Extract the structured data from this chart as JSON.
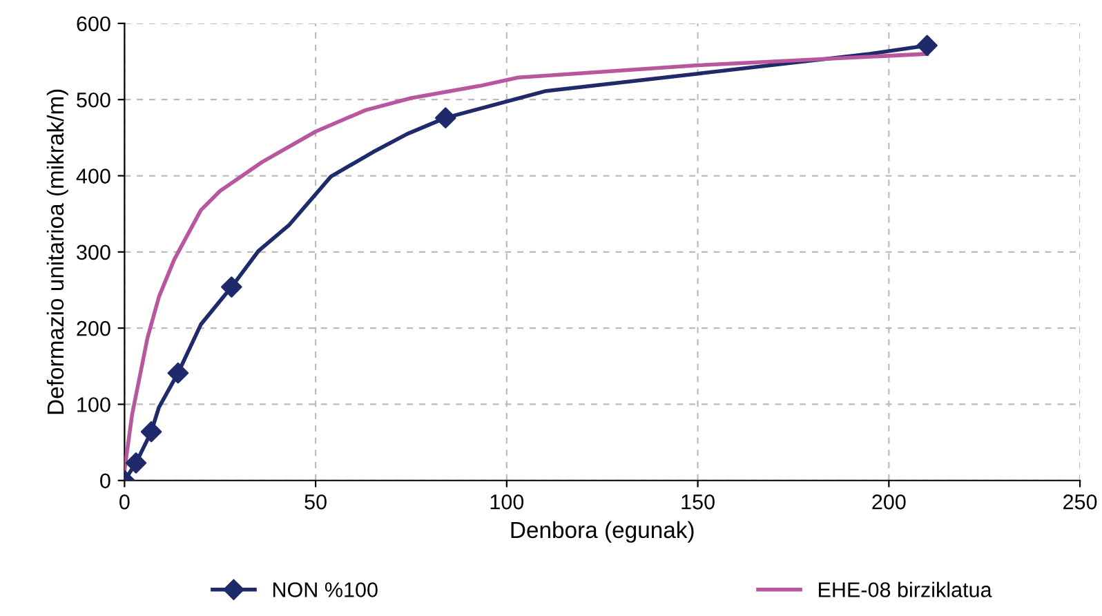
{
  "chart_data": {
    "type": "line",
    "xlabel": "Denbora (egunak)",
    "ylabel": "Deformazio unitarioa (mikrak/m)",
    "xlim": [
      0,
      250
    ],
    "ylim": [
      0,
      600
    ],
    "xticks": [
      0,
      50,
      100,
      150,
      200,
      250
    ],
    "yticks": [
      0,
      100,
      200,
      300,
      400,
      500,
      600
    ],
    "grid": true,
    "legend": "bottom",
    "series": [
      {
        "name": "NON %100",
        "color": "#1f2a6b",
        "marker": "none",
        "x": [
          0,
          3,
          7,
          9,
          14,
          20,
          28,
          35,
          43,
          54,
          65,
          74,
          84,
          110,
          150,
          195,
          210
        ],
        "values": [
          0,
          23,
          64,
          96,
          141,
          205,
          254,
          301,
          335,
          399,
          431,
          455,
          476,
          511,
          534,
          560,
          571
        ]
      },
      {
        "type": "scatter",
        "color": "#1f2a6b",
        "marker": "diamond",
        "x": [
          0,
          3,
          7,
          14,
          28,
          84,
          210
        ],
        "values": [
          0,
          23,
          64,
          141,
          254,
          476,
          571
        ]
      },
      {
        "name": "EHE-08 birziklatua",
        "color": "#b8579e",
        "marker": "none",
        "x": [
          0,
          2,
          6,
          9,
          13,
          20,
          25,
          36,
          50,
          63,
          75,
          93,
          103,
          150,
          210
        ],
        "values": [
          14,
          87,
          187,
          241,
          290,
          355,
          380,
          418,
          458,
          486,
          502,
          518,
          529,
          545,
          560
        ]
      }
    ]
  }
}
